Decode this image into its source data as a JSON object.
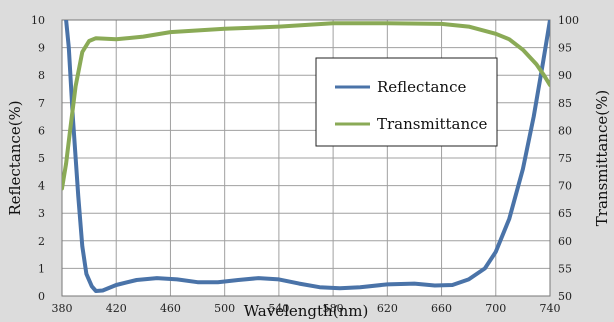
{
  "chart_data": {
    "type": "line",
    "xlabel": "Wavelength(nm)",
    "ylabel_left": "Reflectance(%)",
    "ylabel_right": "Transmittance(%)",
    "xlim": [
      380,
      740
    ],
    "ylim_left": [
      0,
      10
    ],
    "ylim_right": [
      50,
      100
    ],
    "x_ticks": [
      380,
      420,
      460,
      500,
      540,
      580,
      620,
      660,
      700,
      740
    ],
    "y_ticks_left": [
      0,
      1,
      2,
      3,
      4,
      5,
      6,
      7,
      8,
      9,
      10
    ],
    "y_ticks_right": [
      50,
      55,
      60,
      65,
      70,
      75,
      80,
      85,
      90,
      95,
      100
    ],
    "grid": true,
    "legend_position": "top-right",
    "series": [
      {
        "name": "Reflectance",
        "axis": "left",
        "color": "#4a73a8",
        "points": [
          [
            381,
            11
          ],
          [
            385,
            9
          ],
          [
            388,
            6.5
          ],
          [
            392,
            3.6
          ],
          [
            395,
            1.8
          ],
          [
            398,
            0.8
          ],
          [
            402,
            0.35
          ],
          [
            405,
            0.18
          ],
          [
            410,
            0.2
          ],
          [
            420,
            0.4
          ],
          [
            435,
            0.58
          ],
          [
            450,
            0.65
          ],
          [
            465,
            0.6
          ],
          [
            480,
            0.5
          ],
          [
            495,
            0.5
          ],
          [
            510,
            0.58
          ],
          [
            525,
            0.65
          ],
          [
            540,
            0.6
          ],
          [
            555,
            0.45
          ],
          [
            570,
            0.32
          ],
          [
            585,
            0.28
          ],
          [
            600,
            0.32
          ],
          [
            620,
            0.42
          ],
          [
            640,
            0.45
          ],
          [
            655,
            0.38
          ],
          [
            668,
            0.4
          ],
          [
            680,
            0.6
          ],
          [
            692,
            1.0
          ],
          [
            700,
            1.6
          ],
          [
            710,
            2.8
          ],
          [
            720,
            4.6
          ],
          [
            728,
            6.5
          ],
          [
            735,
            8.5
          ],
          [
            740,
            10.0
          ]
        ]
      },
      {
        "name": "Transmittance",
        "axis": "right",
        "color": "#8aaa56",
        "points": [
          [
            380,
            69.5
          ],
          [
            383,
            74
          ],
          [
            386,
            80
          ],
          [
            390,
            88
          ],
          [
            395,
            94.2
          ],
          [
            400,
            96.2
          ],
          [
            405,
            96.7
          ],
          [
            420,
            96.5
          ],
          [
            440,
            97.0
          ],
          [
            460,
            97.8
          ],
          [
            500,
            98.4
          ],
          [
            540,
            98.8
          ],
          [
            580,
            99.4
          ],
          [
            620,
            99.4
          ],
          [
            660,
            99.3
          ],
          [
            680,
            98.8
          ],
          [
            700,
            97.5
          ],
          [
            710,
            96.5
          ],
          [
            720,
            94.6
          ],
          [
            730,
            92.0
          ],
          [
            735,
            90.2
          ],
          [
            740,
            88.2
          ]
        ]
      }
    ]
  }
}
